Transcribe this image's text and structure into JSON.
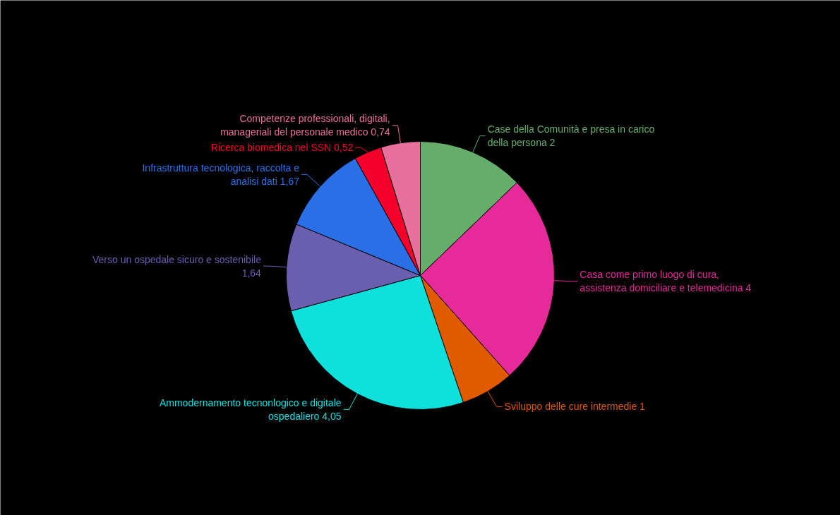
{
  "chart_data": {
    "type": "pie",
    "categories": [
      "Case della Comunità e presa in carico della persona",
      "Casa come primo luogo di cura, assistenza domiciliare e telemedicina",
      "Sviluppo delle cure intermedie",
      "Ammodernamento tecnonlogico e digitale ospedaliero",
      "Verso un ospedale sicuro e sostenibile",
      "Infrastruttura tecnologica, raccolta e analisi dati",
      "Ricerca biomedica nel SSN",
      "Competenze professionali, digitali, manageriali del personale medico"
    ],
    "values": [
      2,
      4,
      1,
      4.05,
      1.64,
      1.67,
      0.52,
      0.74
    ],
    "value_labels": [
      "2",
      "4",
      "1",
      "4,05",
      "1,64",
      "1,67",
      "0,52",
      "0,74"
    ],
    "colors": [
      "#66ad6b",
      "#e62a9a",
      "#e05a00",
      "#10e0dc",
      "#6a5fae",
      "#2a6fe6",
      "#f5002a",
      "#e8709c"
    ]
  }
}
